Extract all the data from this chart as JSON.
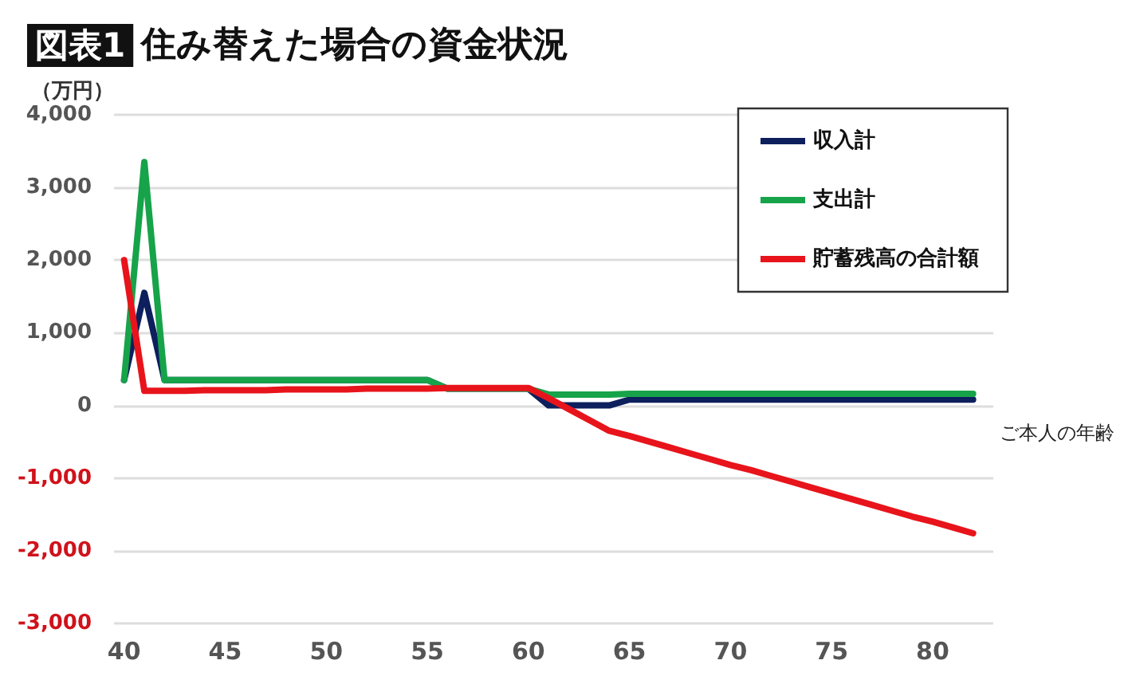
{
  "chart_data": {
    "type": "line",
    "title": "図表1 住み替えた場合の資金状況",
    "ylabel": "（万円）",
    "xlabel": "ご本人の年齢",
    "x": [
      40,
      41,
      42,
      43,
      44,
      45,
      46,
      47,
      48,
      49,
      50,
      51,
      52,
      53,
      54,
      55,
      56,
      57,
      58,
      59,
      60,
      61,
      62,
      63,
      64,
      65,
      66,
      67,
      68,
      69,
      70,
      71,
      72,
      73,
      74,
      75,
      76,
      77,
      78,
      79,
      80,
      81,
      82
    ],
    "series": [
      {
        "name": "収入計",
        "color": "#0d1f5c",
        "values": [
          350,
          1550,
          350,
          350,
          350,
          350,
          350,
          350,
          350,
          350,
          350,
          350,
          350,
          350,
          350,
          350,
          230,
          null,
          null,
          null,
          230,
          0,
          0,
          0,
          0,
          80,
          80,
          80,
          80,
          80,
          80,
          80,
          80,
          80,
          80,
          80,
          80,
          80,
          80,
          80,
          80,
          80,
          80
        ]
      },
      {
        "name": "支出計",
        "color": "#17a34a",
        "values": [
          350,
          3350,
          350,
          350,
          350,
          350,
          350,
          350,
          350,
          350,
          350,
          350,
          350,
          350,
          350,
          350,
          230,
          230,
          230,
          230,
          230,
          150,
          150,
          150,
          150,
          160,
          160,
          160,
          160,
          160,
          160,
          160,
          160,
          160,
          160,
          160,
          160,
          160,
          160,
          160,
          160,
          160,
          160
        ]
      },
      {
        "name": "貯蓄残高の合計額",
        "color": "#e8141b",
        "values": [
          2000,
          200,
          200,
          200,
          210,
          210,
          210,
          210,
          220,
          220,
          220,
          220,
          230,
          230,
          230,
          230,
          240,
          240,
          240,
          240,
          240,
          100,
          -50,
          -200,
          -350,
          -420,
          -500,
          -580,
          -660,
          -740,
          -820,
          -890,
          -970,
          -1050,
          -1130,
          -1210,
          -1290,
          -1370,
          -1450,
          -1530,
          -1600,
          -1680,
          -1760
        ]
      }
    ],
    "xlim": [
      39.5,
      83
    ],
    "xticks": [
      40,
      45,
      50,
      55,
      60,
      65,
      70,
      75,
      80
    ],
    "ylim": [
      -3000,
      4000
    ],
    "yticks": [
      {
        "value": -3000,
        "label": "-3,000"
      },
      {
        "value": -2000,
        "label": "-2,000"
      },
      {
        "value": -1000,
        "label": "-1,000"
      },
      0,
      {
        "value": 1000,
        "label": "1,000"
      },
      {
        "value": 2000,
        "label": "2,000"
      },
      {
        "value": 3000,
        "label": "3,000"
      },
      {
        "value": 4000,
        "label": "4,000"
      }
    ],
    "grid": "y",
    "legend": "top right",
    "marker": "none",
    "line_style": "solid"
  }
}
